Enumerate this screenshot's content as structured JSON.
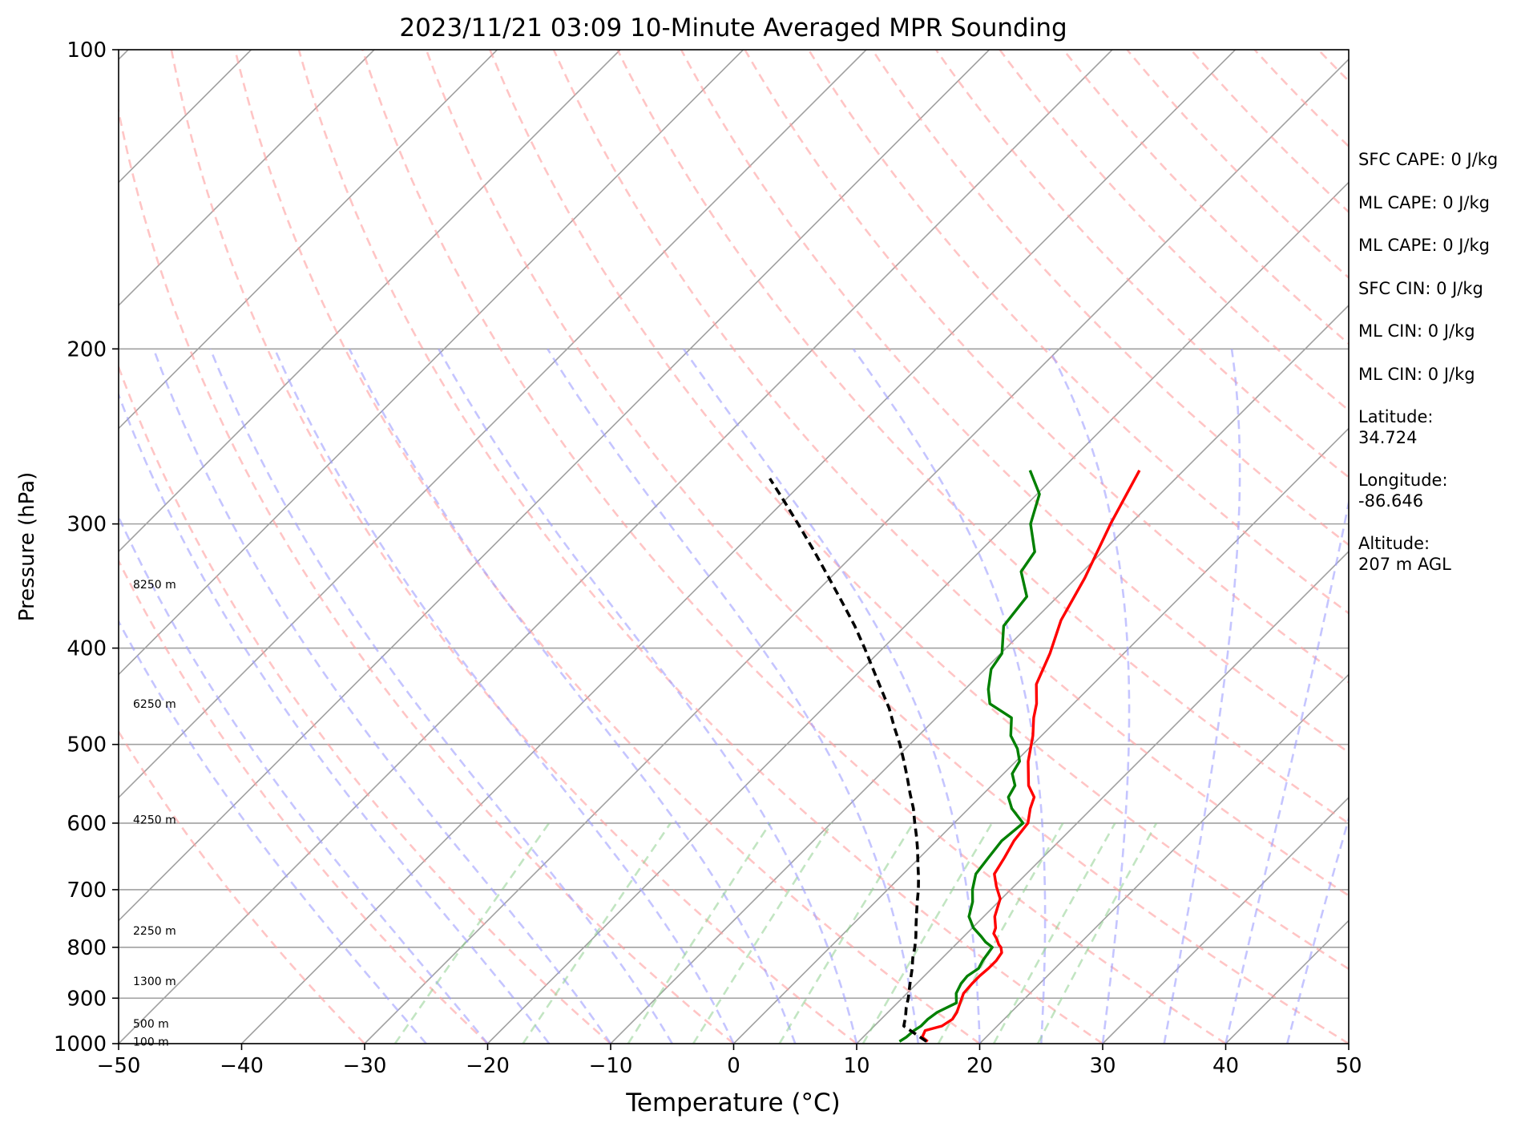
{
  "chart_data": {
    "type": "line",
    "subtype": "skew-T log-P sounding",
    "title": "2023/11/21 03:09 10-Minute Averaged MPR Sounding",
    "xlabel": "Temperature (°C)",
    "ylabel": "Pressure (hPa)",
    "xlim": [
      -50,
      50
    ],
    "ylim": [
      1000,
      100
    ],
    "y_scale": "log",
    "x_ticks": [
      "−50",
      "−40",
      "−30",
      "−20",
      "−10",
      "0",
      "10",
      "20",
      "30",
      "40",
      "50"
    ],
    "y_ticks": [
      "100",
      "200",
      "300",
      "400",
      "500",
      "600",
      "700",
      "800",
      "900",
      "1000"
    ],
    "grid": true,
    "height_labels": [
      {
        "p": 345,
        "label": "8250 m"
      },
      {
        "p": 455,
        "label": "6250 m"
      },
      {
        "p": 595,
        "label": "4250 m"
      },
      {
        "p": 770,
        "label": "2250 m"
      },
      {
        "p": 865,
        "label": "1300 m"
      },
      {
        "p": 955,
        "label": "500 m"
      },
      {
        "p": 995,
        "label": "100 m"
      }
    ],
    "series": [
      {
        "role": "temperature",
        "color": "#ff0000",
        "p": [
          995,
          985,
          970,
          960,
          945,
          930,
          910,
          890,
          870,
          855,
          840,
          825,
          810,
          800,
          795,
          785,
          775,
          765,
          745,
          715,
          695,
          675,
          650,
          625,
          600,
          580,
          565,
          550,
          520,
          490,
          470,
          455,
          435,
          405,
          375,
          340,
          300,
          265
        ],
        "t": [
          15.6,
          14.8,
          14.5,
          15.5,
          15.8,
          15.6,
          15.1,
          14.6,
          14.5,
          14.5,
          14.6,
          14.6,
          14.4,
          13.9,
          13.5,
          12.9,
          12.2,
          11.9,
          10.9,
          9.9,
          8.6,
          7.4,
          6.9,
          6.3,
          6.0,
          5.0,
          4.4,
          3.0,
          1.0,
          -0.7,
          -2.1,
          -3.0,
          -4.6,
          -6.0,
          -7.8,
          -9.3,
          -11.6,
          -13.6
        ]
      },
      {
        "role": "dewpoint",
        "color": "#008000",
        "p": [
          995,
          985,
          970,
          960,
          945,
          930,
          910,
          890,
          870,
          855,
          840,
          825,
          800,
          790,
          780,
          765,
          745,
          720,
          700,
          675,
          650,
          625,
          600,
          580,
          565,
          550,
          535,
          520,
          505,
          490,
          470,
          455,
          440,
          420,
          405,
          380,
          355,
          335,
          320,
          300,
          280,
          265
        ],
        "t": [
          13.3,
          13.5,
          13.6,
          13.8,
          13.8,
          14.0,
          14.8,
          14.0,
          13.6,
          13.5,
          13.8,
          13.5,
          13.2,
          12.2,
          11.4,
          10.1,
          8.8,
          7.9,
          6.9,
          5.9,
          5.6,
          5.3,
          5.6,
          3.5,
          2.3,
          1.9,
          0.7,
          0.3,
          -0.9,
          -2.5,
          -3.9,
          -6.8,
          -8.1,
          -9.5,
          -9.9,
          -12.0,
          -12.5,
          -15.0,
          -15.5,
          -18.1,
          -19.8,
          -22.5
        ]
      },
      {
        "role": "parcel",
        "color": "#000000",
        "dashed": true,
        "p": [
          995,
          960,
          940,
          920,
          900,
          880,
          860,
          840,
          820,
          800,
          780,
          760,
          740,
          720,
          700,
          680,
          660,
          640,
          620,
          600,
          580,
          560,
          540,
          520,
          500,
          480,
          460,
          440,
          420,
          400,
          380,
          360,
          340,
          320,
          300,
          285,
          270
        ],
        "t": [
          15.5,
          12.4,
          11.8,
          11.1,
          10.5,
          9.8,
          9.1,
          8.4,
          7.6,
          6.9,
          6.1,
          5.2,
          4.3,
          3.4,
          2.5,
          1.5,
          0.4,
          -0.7,
          -1.9,
          -3.2,
          -4.5,
          -6.0,
          -7.5,
          -9.1,
          -10.8,
          -12.7,
          -14.6,
          -16.8,
          -19.1,
          -21.5,
          -24.1,
          -27.0,
          -30.1,
          -33.4,
          -37.0,
          -39.9,
          -43.0
        ]
      }
    ]
  },
  "stats": [
    "SFC CAPE: 0 J/kg",
    "ML CAPE: 0 J/kg",
    "ML CAPE: 0 J/kg",
    "SFC CIN: 0 J/kg",
    "ML CIN: 0 J/kg",
    "ML CIN: 0 J/kg"
  ],
  "location": {
    "latitude_label": "Latitude:",
    "latitude": "34.724",
    "longitude_label": "Longitude:",
    "longitude": "-86.646",
    "altitude_label": "Altitude:",
    "altitude": "207 m AGL"
  },
  "colors": {
    "temperature": "#ff0000",
    "dewpoint": "#008000",
    "parcel": "#000000",
    "dry_adiabat": "#ff9f9f",
    "moist_adiabat": "#9f9fff",
    "mixing_ratio": "#8fcf8f",
    "isotherm": "#a0a0a0",
    "isobar": "#a0a0a0"
  }
}
